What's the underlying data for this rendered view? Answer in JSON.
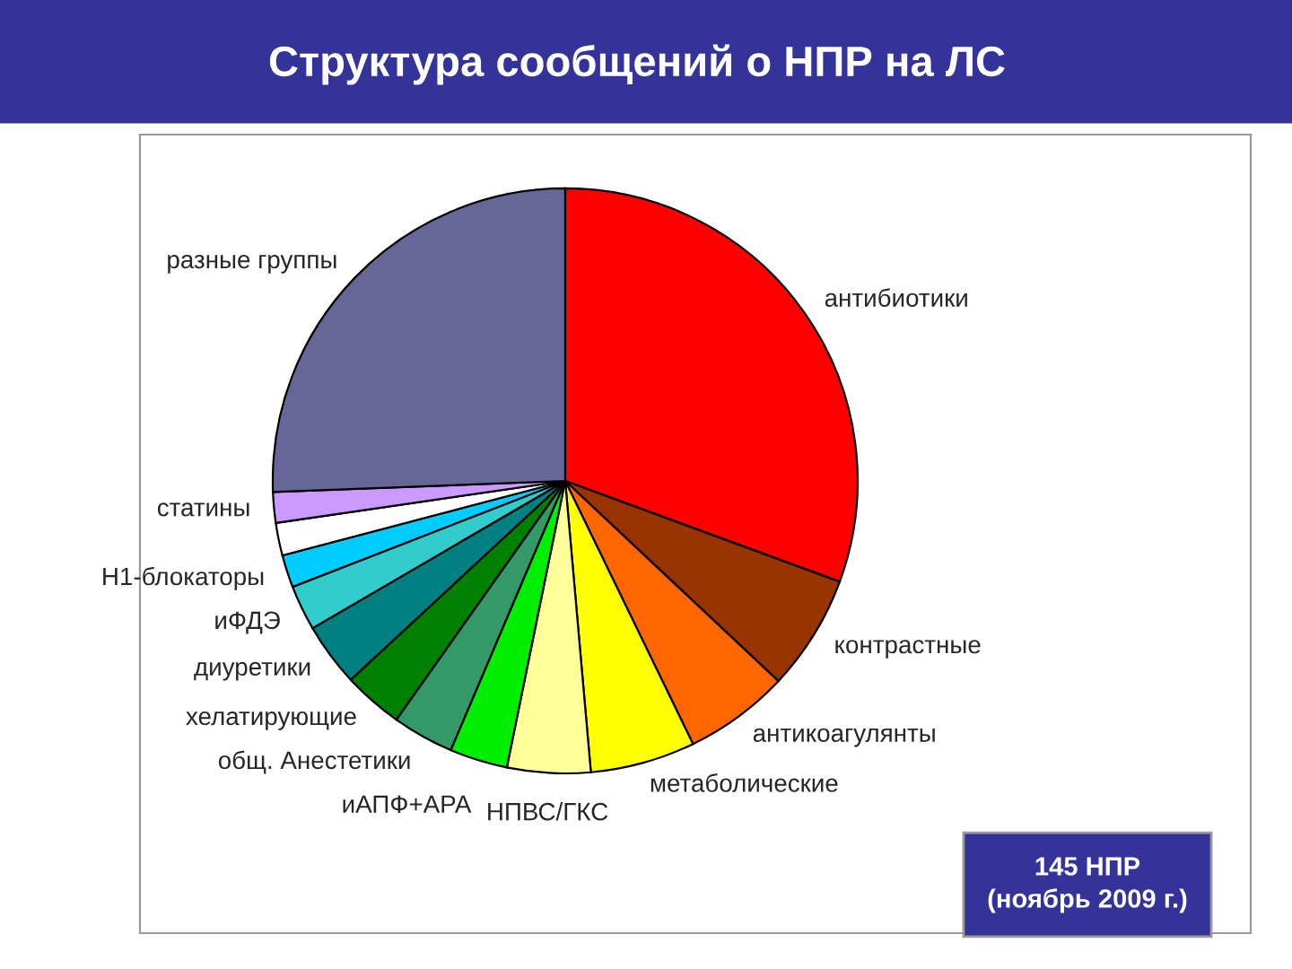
{
  "chart_data": {
    "type": "pie",
    "title": "Структура сообщений о НПР на ЛС",
    "categories": [
      "антибиотики",
      "контрастные",
      "антикоагулянты",
      "метаболические",
      "НПВС/ГКС",
      "иАПФ+АРА",
      "общ. Анестетики",
      "хелатирующие",
      "диуретики",
      "иФДЭ",
      "H1-блокаторы",
      null,
      "статины",
      "разные группы"
    ],
    "values": [
      30.6,
      6.4,
      5.8,
      5.8,
      4.6,
      3.2,
      3.4,
      3.3,
      3.5,
      2.5,
      1.8,
      1.8,
      1.7,
      25.6
    ],
    "colors": [
      "#ff0000",
      "#993300",
      "#ff6600",
      "#ffff00",
      "#ffff99",
      "#00ee00",
      "#339966",
      "#008000",
      "#008080",
      "#33cccc",
      "#00ccff",
      "#ffffff",
      "#cc99ff",
      "#666699"
    ],
    "annotations": [
      "145 НПР\n(ноябрь 2009 г.)"
    ]
  }
}
